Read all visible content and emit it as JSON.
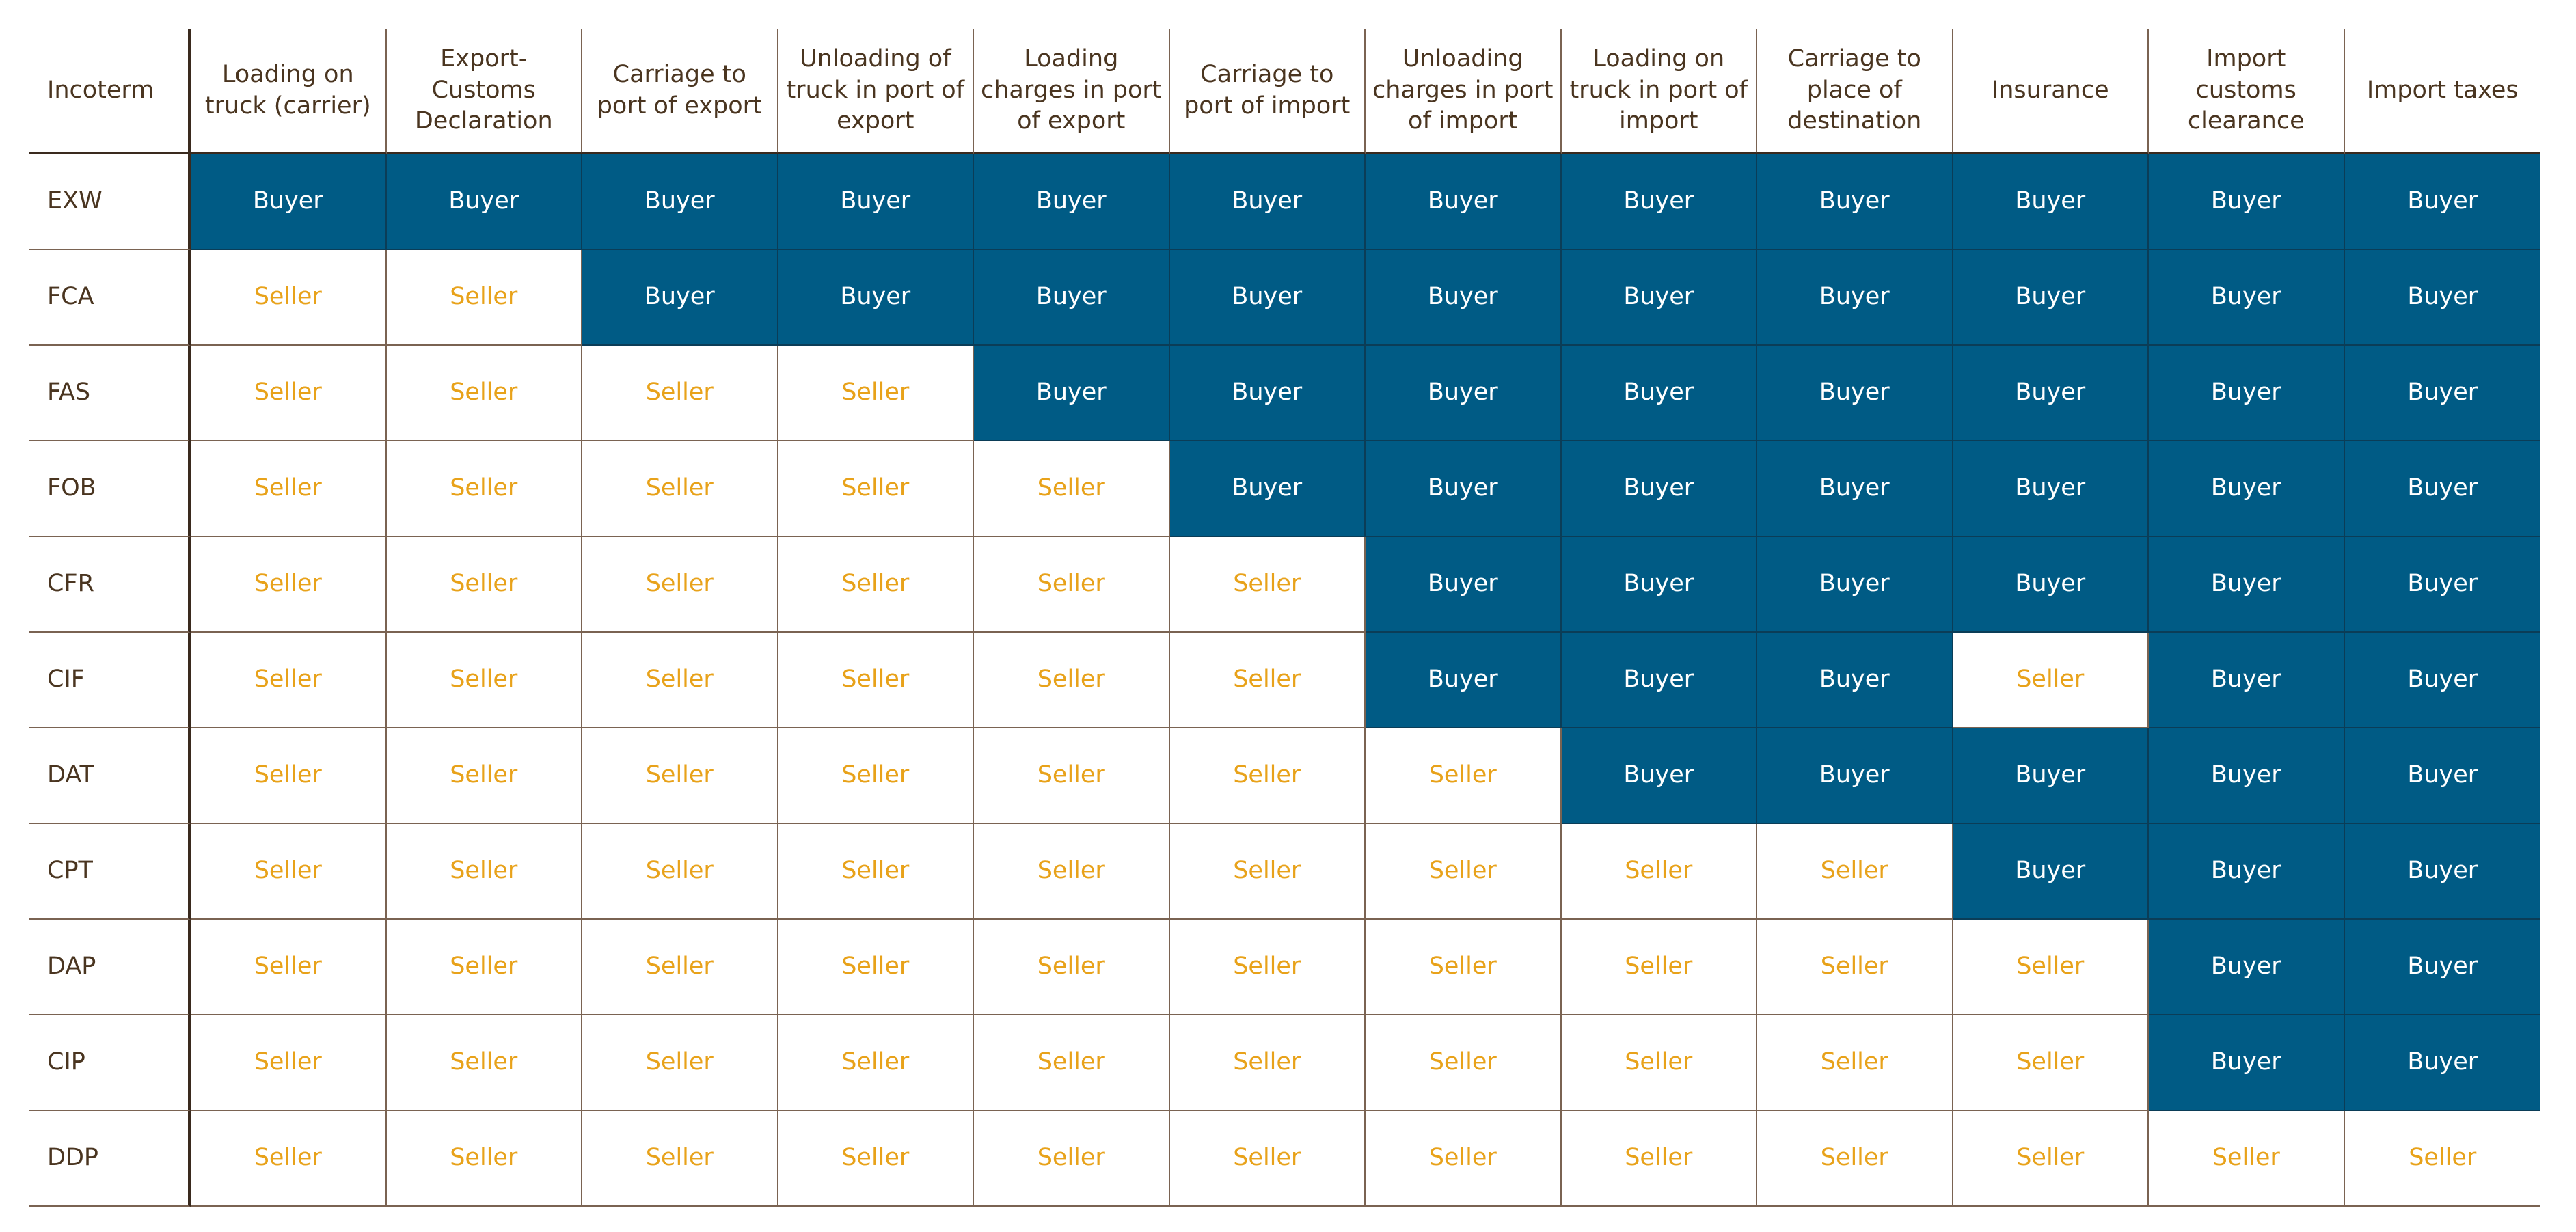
{
  "table": {
    "header": [
      "Incoterm",
      "Loading on truck (carrier)",
      "Export-Customs Declaration",
      "Carriage to port of export",
      "Unloading of truck in port of export",
      "Loading charges in port of export",
      "Carriage to port of import",
      "Unloading charges in port of import",
      "Loading on truck in port of import",
      "Carriage to place of destination",
      "Insurance",
      "Import customs clearance",
      "Import taxes"
    ],
    "rows": [
      [
        "EXW",
        "Buyer",
        "Buyer",
        "Buyer",
        "Buyer",
        "Buyer",
        "Buyer",
        "Buyer",
        "Buyer",
        "Buyer",
        "Buyer",
        "Buyer",
        "Buyer"
      ],
      [
        "FCA",
        "Seller",
        "Seller",
        "Buyer",
        "Buyer",
        "Buyer",
        "Buyer",
        "Buyer",
        "Buyer",
        "Buyer",
        "Buyer",
        "Buyer",
        "Buyer"
      ],
      [
        "FAS",
        "Seller",
        "Seller",
        "Seller",
        "Seller",
        "Buyer",
        "Buyer",
        "Buyer",
        "Buyer",
        "Buyer",
        "Buyer",
        "Buyer",
        "Buyer"
      ],
      [
        "FOB",
        "Seller",
        "Seller",
        "Seller",
        "Seller",
        "Seller",
        "Buyer",
        "Buyer",
        "Buyer",
        "Buyer",
        "Buyer",
        "Buyer",
        "Buyer"
      ],
      [
        "CFR",
        "Seller",
        "Seller",
        "Seller",
        "Seller",
        "Seller",
        "Seller",
        "Buyer",
        "Buyer",
        "Buyer",
        "Buyer",
        "Buyer",
        "Buyer"
      ],
      [
        "CIF",
        "Seller",
        "Seller",
        "Seller",
        "Seller",
        "Seller",
        "Seller",
        "Buyer",
        "Buyer",
        "Buyer",
        "Seller",
        "Buyer",
        "Buyer"
      ],
      [
        "DAT",
        "Seller",
        "Seller",
        "Seller",
        "Seller",
        "Seller",
        "Seller",
        "Seller",
        "Buyer",
        "Buyer",
        "Buyer",
        "Buyer",
        "Buyer"
      ],
      [
        "CPT",
        "Seller",
        "Seller",
        "Seller",
        "Seller",
        "Seller",
        "Seller",
        "Seller",
        "Seller",
        "Seller",
        "Buyer",
        "Buyer",
        "Buyer"
      ],
      [
        "DAP",
        "Seller",
        "Seller",
        "Seller",
        "Seller",
        "Seller",
        "Seller",
        "Seller",
        "Seller",
        "Seller",
        "Seller",
        "Buyer",
        "Buyer"
      ],
      [
        "CIP",
        "Seller",
        "Seller",
        "Seller",
        "Seller",
        "Seller",
        "Seller",
        "Seller",
        "Seller",
        "Seller",
        "Seller",
        "Buyer",
        "Buyer"
      ],
      [
        "DDP",
        "Seller",
        "Seller",
        "Seller",
        "Seller",
        "Seller",
        "Seller",
        "Seller",
        "Seller",
        "Seller",
        "Seller",
        "Seller",
        "Seller"
      ]
    ]
  }
}
